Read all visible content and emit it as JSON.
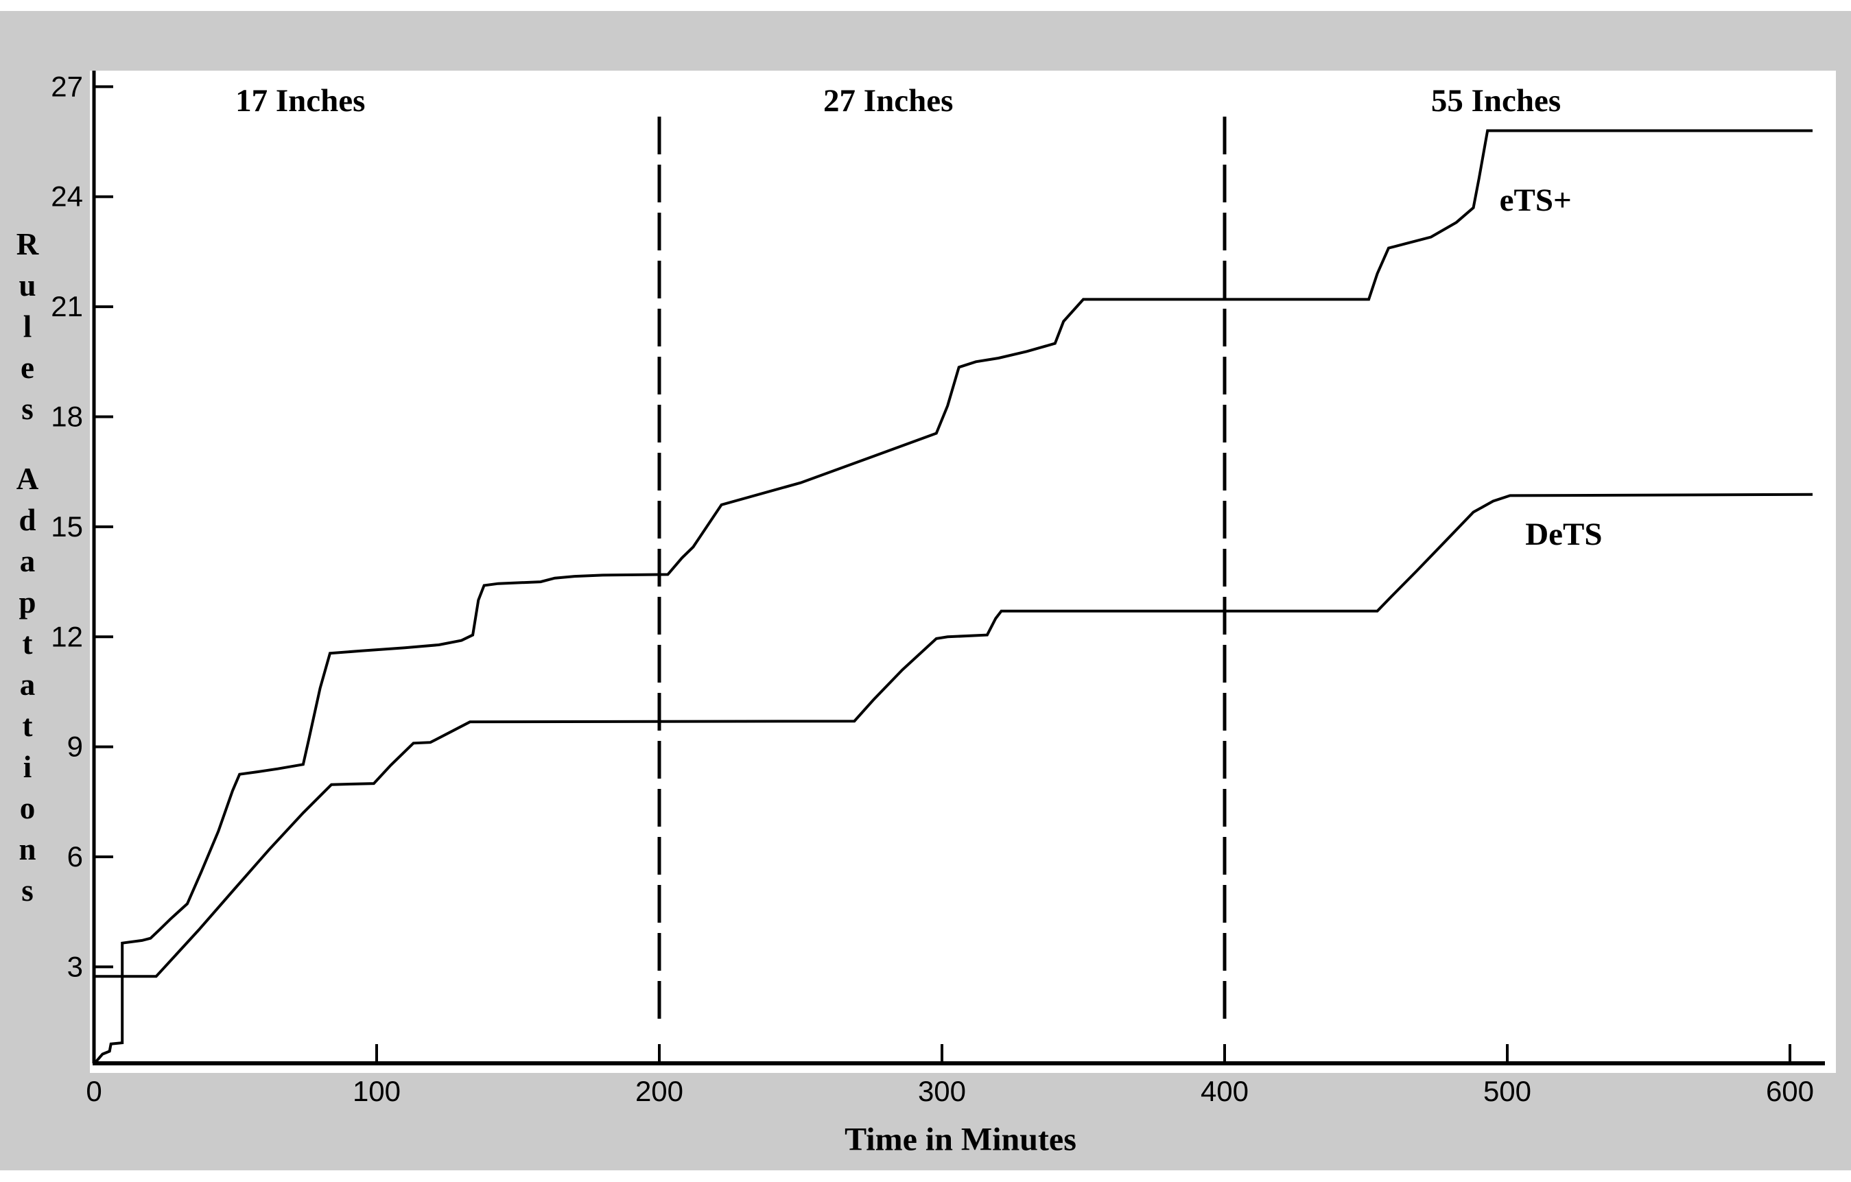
{
  "figure": {
    "band_color": "#cbcbcb",
    "plot_bg": "#ffffff",
    "line_color": "#000000"
  },
  "axis_titles": {
    "x": "Time in Minutes",
    "y": "Rules Adaptations"
  },
  "region_labels": [
    {
      "label": "17 Inches"
    },
    {
      "label": "27 Inches"
    },
    {
      "label": "55 Inches"
    }
  ],
  "series_labels": {
    "ets": "eTS+",
    "dets": "DeTS"
  },
  "chart_data": {
    "type": "line",
    "title": "",
    "xlabel": "Time in Minutes",
    "ylabel": "Rules Adaptations",
    "xlim": [
      0,
      612
    ],
    "ylim": [
      0.37,
      27.35
    ],
    "x_ticks": [
      0,
      100,
      200,
      300,
      400,
      500,
      600
    ],
    "y_ticks": [
      3,
      6,
      9,
      12,
      15,
      18,
      21,
      24,
      27
    ],
    "grid": false,
    "legend_position": "inline-labels",
    "region_dividers_x": [
      200,
      400
    ],
    "regions": [
      {
        "label": "17 Inches",
        "x_center": 73
      },
      {
        "label": "27 Inches",
        "x_center": 281
      },
      {
        "label": "55 Inches",
        "x_center": 496
      }
    ],
    "series": [
      {
        "name": "eTS+",
        "label_pos": [
          510,
          23.9
        ],
        "points": [
          [
            0,
            0.35
          ],
          [
            3,
            0.62
          ],
          [
            5.5,
            0.7
          ],
          [
            6,
            0.9
          ],
          [
            10,
            0.93
          ],
          [
            10,
            3.65
          ],
          [
            17,
            3.72
          ],
          [
            20,
            3.78
          ],
          [
            23,
            4.0
          ],
          [
            27,
            4.3
          ],
          [
            33,
            4.72
          ],
          [
            38,
            5.6
          ],
          [
            44,
            6.7
          ],
          [
            49,
            7.8
          ],
          [
            51.5,
            8.25
          ],
          [
            58,
            8.32
          ],
          [
            65,
            8.4
          ],
          [
            74,
            8.52
          ],
          [
            76,
            9.2
          ],
          [
            80,
            10.6
          ],
          [
            83.5,
            11.55
          ],
          [
            95,
            11.62
          ],
          [
            110,
            11.7
          ],
          [
            122,
            11.78
          ],
          [
            130,
            11.9
          ],
          [
            134,
            12.05
          ],
          [
            136,
            13.0
          ],
          [
            138,
            13.4
          ],
          [
            143,
            13.45
          ],
          [
            158,
            13.5
          ],
          [
            163,
            13.6
          ],
          [
            170,
            13.65
          ],
          [
            180,
            13.68
          ],
          [
            203,
            13.7
          ],
          [
            208,
            14.15
          ],
          [
            212,
            14.45
          ],
          [
            222,
            15.6
          ],
          [
            250,
            16.2
          ],
          [
            275,
            16.9
          ],
          [
            298,
            17.55
          ],
          [
            302,
            18.3
          ],
          [
            306,
            19.35
          ],
          [
            312,
            19.5
          ],
          [
            320,
            19.6
          ],
          [
            330,
            19.78
          ],
          [
            340,
            20.0
          ],
          [
            343,
            20.6
          ],
          [
            350,
            21.2
          ],
          [
            451,
            21.2
          ],
          [
            454,
            21.9
          ],
          [
            458,
            22.6
          ],
          [
            464,
            22.72
          ],
          [
            473,
            22.9
          ],
          [
            482,
            23.3
          ],
          [
            488,
            23.7
          ],
          [
            490,
            24.5
          ],
          [
            493,
            25.8
          ],
          [
            608,
            25.8
          ]
        ]
      },
      {
        "name": "DeTS",
        "label_pos": [
          520,
          14.8
        ],
        "points": [
          [
            0,
            2.74
          ],
          [
            22,
            2.74
          ],
          [
            37,
            4.0
          ],
          [
            50,
            5.15
          ],
          [
            62,
            6.2
          ],
          [
            74,
            7.2
          ],
          [
            84,
            7.97
          ],
          [
            99,
            8.0
          ],
          [
            105,
            8.5
          ],
          [
            113,
            9.1
          ],
          [
            119,
            9.12
          ],
          [
            126,
            9.4
          ],
          [
            133,
            9.68
          ],
          [
            269,
            9.7
          ],
          [
            276,
            10.3
          ],
          [
            286,
            11.1
          ],
          [
            298,
            11.95
          ],
          [
            302,
            12.0
          ],
          [
            316,
            12.05
          ],
          [
            319,
            12.5
          ],
          [
            321,
            12.7
          ],
          [
            454,
            12.7
          ],
          [
            459,
            13.1
          ],
          [
            468,
            13.8
          ],
          [
            478,
            14.6
          ],
          [
            488,
            15.4
          ],
          [
            495,
            15.7
          ],
          [
            501,
            15.85
          ],
          [
            608,
            15.88
          ]
        ]
      }
    ]
  }
}
